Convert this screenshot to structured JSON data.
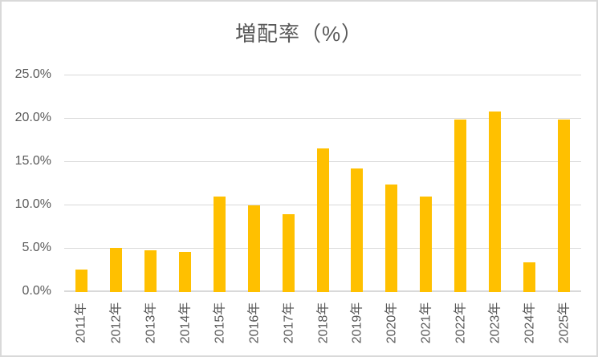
{
  "chart_data": {
    "type": "bar",
    "title": "増配率（%）",
    "categories": [
      "2011年",
      "2012年",
      "2013年",
      "2014年",
      "2015年",
      "2016年",
      "2017年",
      "2018年",
      "2019年",
      "2020年",
      "2021年",
      "2022年",
      "2023年",
      "2024年",
      "2025年"
    ],
    "values": [
      2.6,
      5.1,
      4.8,
      4.6,
      11.0,
      10.0,
      9.0,
      16.6,
      14.3,
      12.4,
      11.0,
      19.9,
      20.8,
      3.4,
      19.9
    ],
    "unit": "%",
    "xlabel": "",
    "ylabel": "",
    "ylim": [
      0,
      25
    ],
    "ytick_step": 5,
    "ytick_labels": [
      "0.0%",
      "5.0%",
      "10.0%",
      "15.0%",
      "20.0%",
      "25.0%"
    ],
    "grid": true,
    "legend": "none",
    "colors": {
      "bar": "#FFC000",
      "gridline": "#D9D9D9",
      "axis_line": "#D9D9D9",
      "tick_label": "#595959",
      "title": "#595959",
      "background": "#FFFFFF",
      "border": "#D9D9D9"
    }
  }
}
